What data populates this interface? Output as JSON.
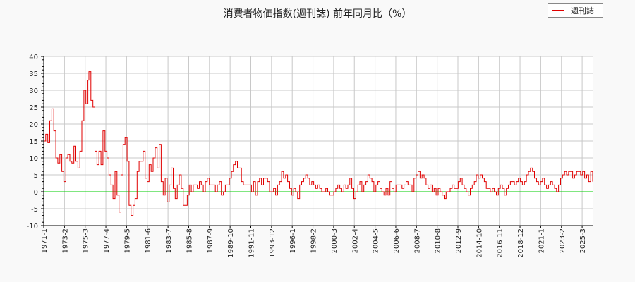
{
  "title": "消費者物価指数(週刊誌) 前年同月比（%）",
  "legend": {
    "entries": [
      {
        "label": "週刊誌",
        "color": "#e00000"
      }
    ]
  },
  "colors": {
    "series": "#e00000",
    "zero_line": "#00cc00",
    "grid": "#c8c8c8",
    "background": "#f9f9f9",
    "plot_bg": "#ffffff"
  },
  "chart_data": {
    "type": "line",
    "title": "消費者物価指数(週刊誌) 前年同月比（%）",
    "xlabel": "",
    "ylabel": "",
    "ylim": [
      -10,
      40
    ],
    "yticks": [
      40,
      35,
      30,
      25,
      20,
      15,
      10,
      5,
      0,
      -5,
      -10
    ],
    "xticks": [
      "1971-1",
      "1973-2",
      "1975-3",
      "1977-4",
      "1979-5",
      "1981-6",
      "1983-7",
      "1985-8",
      "1987-9",
      "1989-10",
      "1991-11",
      "1993-12",
      "1996-1",
      "1998-2",
      "2000-3",
      "2002-4",
      "2004-5",
      "2006-6",
      "2008-7",
      "2010-8",
      "2012-9",
      "2014-10",
      "2016-11",
      "2018-12",
      "2021-1",
      "2023-2",
      "2025-3"
    ],
    "grid": true,
    "legend_position": "top-right",
    "series": [
      {
        "name": "週刊誌",
        "x_start": "1971-1",
        "x_end": "2025-8",
        "points": [
          [
            1971.0,
            15
          ],
          [
            1971.2,
            17
          ],
          [
            1971.4,
            14.5
          ],
          [
            1971.6,
            21
          ],
          [
            1971.8,
            24.5
          ],
          [
            1972.0,
            18
          ],
          [
            1972.2,
            10
          ],
          [
            1972.4,
            8.5
          ],
          [
            1972.6,
            11
          ],
          [
            1972.8,
            6
          ],
          [
            1973.0,
            3
          ],
          [
            1973.2,
            10
          ],
          [
            1973.4,
            11
          ],
          [
            1973.6,
            9
          ],
          [
            1973.8,
            8.5
          ],
          [
            1974.0,
            13.5
          ],
          [
            1974.2,
            9
          ],
          [
            1974.4,
            7
          ],
          [
            1974.6,
            12
          ],
          [
            1974.8,
            21
          ],
          [
            1975.0,
            30
          ],
          [
            1975.2,
            26
          ],
          [
            1975.4,
            33
          ],
          [
            1975.5,
            35.5
          ],
          [
            1975.7,
            27
          ],
          [
            1975.9,
            25
          ],
          [
            1976.1,
            12
          ],
          [
            1976.3,
            8
          ],
          [
            1976.5,
            12
          ],
          [
            1976.7,
            8
          ],
          [
            1976.9,
            18
          ],
          [
            1977.1,
            12
          ],
          [
            1977.3,
            10
          ],
          [
            1977.5,
            5
          ],
          [
            1977.7,
            2
          ],
          [
            1977.9,
            -2
          ],
          [
            1978.1,
            6
          ],
          [
            1978.3,
            -1
          ],
          [
            1978.5,
            -6
          ],
          [
            1978.7,
            5
          ],
          [
            1978.9,
            14
          ],
          [
            1979.1,
            16
          ],
          [
            1979.3,
            9
          ],
          [
            1979.5,
            -4
          ],
          [
            1979.7,
            -7
          ],
          [
            1979.9,
            -4
          ],
          [
            1980.1,
            -2
          ],
          [
            1980.3,
            6
          ],
          [
            1980.5,
            9
          ],
          [
            1980.7,
            9
          ],
          [
            1980.9,
            12
          ],
          [
            1981.1,
            4
          ],
          [
            1981.3,
            3
          ],
          [
            1981.5,
            8
          ],
          [
            1981.7,
            6
          ],
          [
            1981.9,
            10
          ],
          [
            1982.1,
            13
          ],
          [
            1982.3,
            7
          ],
          [
            1982.5,
            14
          ],
          [
            1982.7,
            3
          ],
          [
            1982.9,
            -1
          ],
          [
            1983.1,
            4
          ],
          [
            1983.3,
            -3
          ],
          [
            1983.5,
            2
          ],
          [
            1983.7,
            7
          ],
          [
            1983.9,
            1
          ],
          [
            1984.1,
            -2
          ],
          [
            1984.3,
            2
          ],
          [
            1984.5,
            5
          ],
          [
            1984.7,
            1
          ],
          [
            1984.9,
            -4
          ],
          [
            1985.1,
            -4
          ],
          [
            1985.3,
            -1
          ],
          [
            1985.5,
            2
          ],
          [
            1985.7,
            0
          ],
          [
            1985.9,
            2
          ],
          [
            1986.1,
            2
          ],
          [
            1986.3,
            1
          ],
          [
            1986.5,
            3
          ],
          [
            1986.7,
            2
          ],
          [
            1986.9,
            0
          ],
          [
            1987.1,
            3
          ],
          [
            1987.3,
            4
          ],
          [
            1987.5,
            2
          ],
          [
            1987.7,
            2
          ],
          [
            1987.9,
            2
          ],
          [
            1988.1,
            0
          ],
          [
            1988.3,
            2
          ],
          [
            1988.5,
            3
          ],
          [
            1988.7,
            -1
          ],
          [
            1988.9,
            0
          ],
          [
            1989.1,
            2
          ],
          [
            1989.3,
            2
          ],
          [
            1989.5,
            4
          ],
          [
            1989.7,
            6
          ],
          [
            1989.9,
            8
          ],
          [
            1990.1,
            9
          ],
          [
            1990.3,
            7
          ],
          [
            1990.5,
            7
          ],
          [
            1990.7,
            3
          ],
          [
            1990.9,
            2
          ],
          [
            1991.1,
            2
          ],
          [
            1991.3,
            2
          ],
          [
            1991.5,
            2
          ],
          [
            1991.7,
            0
          ],
          [
            1991.9,
            3
          ],
          [
            1992.1,
            -1
          ],
          [
            1992.3,
            3
          ],
          [
            1992.5,
            4
          ],
          [
            1992.7,
            2
          ],
          [
            1992.9,
            4
          ],
          [
            1993.1,
            4
          ],
          [
            1993.3,
            3
          ],
          [
            1993.5,
            0
          ],
          [
            1993.7,
            0
          ],
          [
            1993.9,
            1
          ],
          [
            1994.1,
            -1
          ],
          [
            1994.3,
            2
          ],
          [
            1994.5,
            3
          ],
          [
            1994.7,
            6
          ],
          [
            1994.9,
            4
          ],
          [
            1995.1,
            5
          ],
          [
            1995.3,
            3
          ],
          [
            1995.5,
            1
          ],
          [
            1995.7,
            -1
          ],
          [
            1995.9,
            1
          ],
          [
            1996.1,
            0
          ],
          [
            1996.3,
            -2
          ],
          [
            1996.5,
            2
          ],
          [
            1996.7,
            3
          ],
          [
            1996.9,
            4
          ],
          [
            1997.1,
            5
          ],
          [
            1997.3,
            4
          ],
          [
            1997.5,
            2
          ],
          [
            1997.7,
            3
          ],
          [
            1997.9,
            2
          ],
          [
            1998.1,
            1
          ],
          [
            1998.3,
            2
          ],
          [
            1998.5,
            1
          ],
          [
            1998.7,
            0
          ],
          [
            1998.9,
            0
          ],
          [
            1999.1,
            1
          ],
          [
            1999.3,
            0
          ],
          [
            1999.5,
            -1
          ],
          [
            1999.7,
            -1
          ],
          [
            1999.9,
            0
          ],
          [
            2000.1,
            1
          ],
          [
            2000.3,
            2
          ],
          [
            2000.5,
            1
          ],
          [
            2000.7,
            0
          ],
          [
            2000.9,
            2
          ],
          [
            2001.1,
            1
          ],
          [
            2001.3,
            2
          ],
          [
            2001.5,
            4
          ],
          [
            2001.7,
            1
          ],
          [
            2001.9,
            -2
          ],
          [
            2002.1,
            0
          ],
          [
            2002.3,
            2
          ],
          [
            2002.5,
            3
          ],
          [
            2002.7,
            0
          ],
          [
            2002.9,
            2
          ],
          [
            2003.1,
            3
          ],
          [
            2003.3,
            5
          ],
          [
            2003.5,
            4
          ],
          [
            2003.7,
            3
          ],
          [
            2003.9,
            0
          ],
          [
            2004.1,
            2
          ],
          [
            2004.3,
            3
          ],
          [
            2004.5,
            1
          ],
          [
            2004.7,
            0
          ],
          [
            2004.9,
            -1
          ],
          [
            2005.1,
            1
          ],
          [
            2005.3,
            -1
          ],
          [
            2005.5,
            3
          ],
          [
            2005.7,
            1
          ],
          [
            2005.9,
            0
          ],
          [
            2006.1,
            2
          ],
          [
            2006.3,
            2
          ],
          [
            2006.5,
            2
          ],
          [
            2006.7,
            1
          ],
          [
            2006.9,
            2
          ],
          [
            2007.1,
            3
          ],
          [
            2007.3,
            2
          ],
          [
            2007.5,
            2
          ],
          [
            2007.7,
            0
          ],
          [
            2007.9,
            4
          ],
          [
            2008.1,
            5
          ],
          [
            2008.3,
            6
          ],
          [
            2008.5,
            4
          ],
          [
            2008.7,
            5
          ],
          [
            2008.9,
            4
          ],
          [
            2009.1,
            2
          ],
          [
            2009.3,
            1
          ],
          [
            2009.5,
            2
          ],
          [
            2009.7,
            0
          ],
          [
            2009.9,
            1
          ],
          [
            2010.1,
            -1
          ],
          [
            2010.3,
            1
          ],
          [
            2010.5,
            0
          ],
          [
            2010.7,
            -1
          ],
          [
            2010.9,
            -2
          ],
          [
            2011.1,
            0
          ],
          [
            2011.3,
            0
          ],
          [
            2011.5,
            1
          ],
          [
            2011.7,
            2
          ],
          [
            2011.9,
            1
          ],
          [
            2012.1,
            1
          ],
          [
            2012.3,
            3
          ],
          [
            2012.5,
            4
          ],
          [
            2012.7,
            2
          ],
          [
            2012.9,
            1
          ],
          [
            2013.1,
            0
          ],
          [
            2013.3,
            -1
          ],
          [
            2013.5,
            1
          ],
          [
            2013.7,
            2
          ],
          [
            2013.9,
            3
          ],
          [
            2014.1,
            5
          ],
          [
            2014.3,
            4
          ],
          [
            2014.5,
            5
          ],
          [
            2014.7,
            4
          ],
          [
            2014.9,
            3
          ],
          [
            2015.1,
            1
          ],
          [
            2015.3,
            1
          ],
          [
            2015.5,
            0
          ],
          [
            2015.7,
            1
          ],
          [
            2015.9,
            0
          ],
          [
            2016.1,
            -1
          ],
          [
            2016.3,
            1
          ],
          [
            2016.5,
            2
          ],
          [
            2016.7,
            1
          ],
          [
            2016.9,
            -1
          ],
          [
            2017.1,
            1
          ],
          [
            2017.3,
            2
          ],
          [
            2017.5,
            3
          ],
          [
            2017.7,
            3
          ],
          [
            2017.9,
            2
          ],
          [
            2018.1,
            3
          ],
          [
            2018.3,
            4
          ],
          [
            2018.5,
            3
          ],
          [
            2018.7,
            2
          ],
          [
            2018.9,
            3
          ],
          [
            2019.1,
            5
          ],
          [
            2019.3,
            6
          ],
          [
            2019.5,
            7
          ],
          [
            2019.7,
            6
          ],
          [
            2019.9,
            4
          ],
          [
            2020.1,
            3
          ],
          [
            2020.3,
            2
          ],
          [
            2020.5,
            3
          ],
          [
            2020.7,
            4
          ],
          [
            2020.9,
            2
          ],
          [
            2021.1,
            1
          ],
          [
            2021.3,
            2
          ],
          [
            2021.5,
            3
          ],
          [
            2021.7,
            2
          ],
          [
            2021.9,
            1
          ],
          [
            2022.1,
            0
          ],
          [
            2022.3,
            2
          ],
          [
            2022.5,
            4
          ],
          [
            2022.7,
            5
          ],
          [
            2022.9,
            6
          ],
          [
            2023.1,
            5
          ],
          [
            2023.3,
            6
          ],
          [
            2023.5,
            6
          ],
          [
            2023.7,
            4
          ],
          [
            2023.9,
            5
          ],
          [
            2024.1,
            6
          ],
          [
            2024.3,
            6
          ],
          [
            2024.5,
            5
          ],
          [
            2024.7,
            6
          ],
          [
            2024.9,
            4
          ],
          [
            2025.1,
            5
          ],
          [
            2025.3,
            3
          ],
          [
            2025.5,
            6
          ],
          [
            2025.7,
            3
          ]
        ]
      }
    ]
  }
}
